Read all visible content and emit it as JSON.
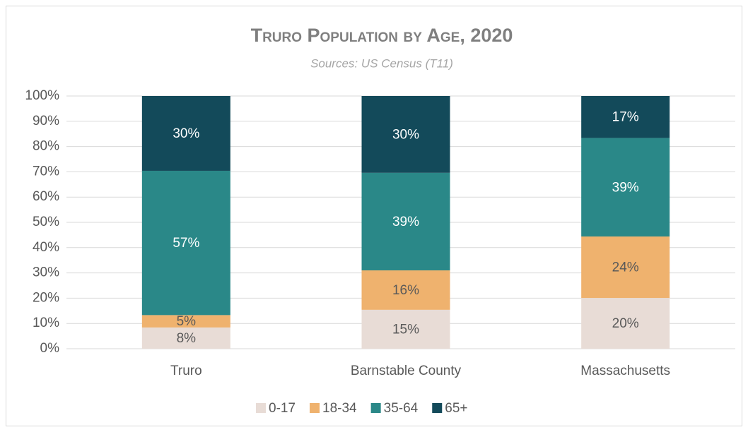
{
  "chart_data": {
    "type": "stacked_bar",
    "title": "Truro Population by Age, 2020",
    "subtitle": "Sources: US Census (T11)",
    "categories": [
      "Truro",
      "Barnstable County",
      "Massachusetts"
    ],
    "series": [
      {
        "name": "0-17",
        "color": "#e8dcd6",
        "values": [
          8.4,
          15.4,
          20.1
        ],
        "value_labels": [
          "8%",
          "15%",
          "20%"
        ]
      },
      {
        "name": "18-34",
        "color": "#efb26e",
        "values": [
          4.9,
          15.6,
          24.3
        ],
        "value_labels": [
          "5%",
          "16%",
          "24%"
        ]
      },
      {
        "name": "35-64",
        "color": "#2a8888",
        "values": [
          57.1,
          38.6,
          39.0
        ],
        "value_labels": [
          "57%",
          "39%",
          "39%"
        ]
      },
      {
        "name": "65+",
        "color": "#134a5a",
        "values": [
          29.6,
          30.4,
          16.6
        ],
        "value_labels": [
          "30%",
          "30%",
          "17%"
        ]
      }
    ],
    "ylim": [
      0,
      100
    ],
    "yticks": [
      {
        "value": 0,
        "label": "0%"
      },
      {
        "value": 10,
        "label": "10%"
      },
      {
        "value": 20,
        "label": "20%"
      },
      {
        "value": 30,
        "label": "30%"
      },
      {
        "value": 40,
        "label": "40%"
      },
      {
        "value": 50,
        "label": "50%"
      },
      {
        "value": 60,
        "label": "60%"
      },
      {
        "value": 70,
        "label": "70%"
      },
      {
        "value": 80,
        "label": "80%"
      },
      {
        "value": 90,
        "label": "90%"
      },
      {
        "value": 100,
        "label": "100%"
      }
    ],
    "grid": true,
    "legend": "bottom"
  }
}
